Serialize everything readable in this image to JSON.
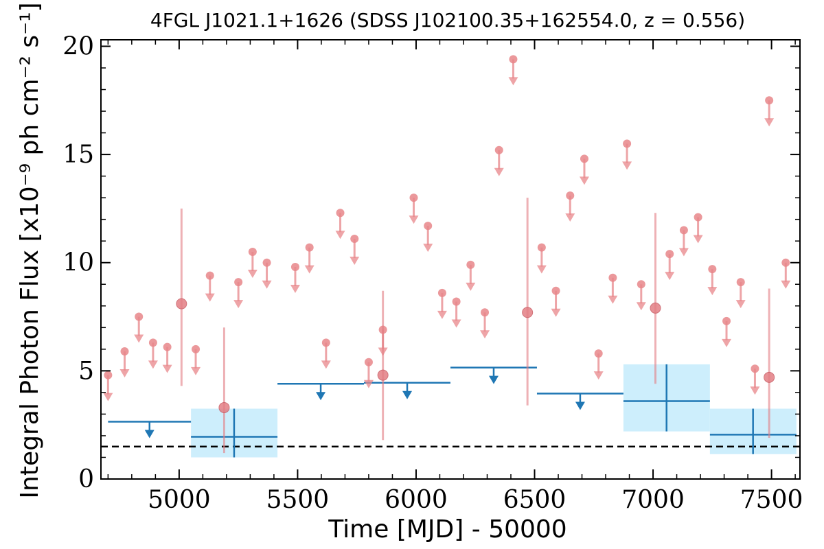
{
  "chart_data": {
    "type": "scatter",
    "title": "4FGL J1021.1+1626 (SDSS J102100.35+162554.0, z = 0.556)",
    "xlabel": "Time [MJD] - 50000",
    "ylabel": "Integral Photon Flux [x10⁻⁹ ph cm⁻² s⁻¹]",
    "xlim": [
      4670,
      7620
    ],
    "ylim": [
      0,
      20.3
    ],
    "xticks": [
      5000,
      5500,
      6000,
      6500,
      7000,
      7500
    ],
    "xtick_labels": [
      "5000",
      "5500",
      "6000",
      "6500",
      "7000",
      "7500"
    ],
    "yticks": [
      0,
      5,
      10,
      15,
      20
    ],
    "ytick_labels": [
      "0",
      "5",
      "10",
      "15",
      "20"
    ],
    "grid": false,
    "baseline_flux": 1.5,
    "series": [
      {
        "kind": "short-bin-upper-limits",
        "color": "#e8868a",
        "x": [
          4700,
          4770,
          4830,
          4890,
          4950,
          5070,
          5130,
          5250,
          5310,
          5370,
          5490,
          5550,
          5620,
          5680,
          5740,
          5800,
          5860,
          5990,
          6050,
          6110,
          6170,
          6230,
          6290,
          6350,
          6410,
          6530,
          6590,
          6650,
          6710,
          6770,
          6830,
          6890,
          6950,
          7070,
          7130,
          7190,
          7250,
          7310,
          7370,
          7430,
          7490,
          7560
        ],
        "values": [
          4.8,
          5.9,
          7.5,
          6.3,
          6.1,
          6.0,
          9.4,
          9.1,
          10.5,
          10.0,
          9.8,
          10.7,
          6.3,
          12.3,
          11.1,
          5.4,
          6.9,
          13.0,
          11.7,
          8.6,
          8.2,
          9.9,
          7.7,
          15.2,
          19.4,
          10.7,
          8.7,
          13.1,
          14.8,
          5.8,
          9.3,
          15.5,
          9.0,
          10.4,
          11.5,
          12.1,
          9.7,
          7.3,
          9.1,
          5.1,
          17.5,
          10.0
        ]
      },
      {
        "kind": "short-bin-detections",
        "color": "#e37e84",
        "x": [
          5010,
          5190,
          5860,
          6470,
          7010,
          7490
        ],
        "values": [
          8.1,
          3.3,
          4.8,
          7.7,
          7.9,
          4.7
        ],
        "err_low": [
          4.3,
          1.2,
          1.8,
          3.4,
          4.4,
          1.9
        ],
        "err_high": [
          12.5,
          7.0,
          8.7,
          13.0,
          12.3,
          8.8
        ]
      },
      {
        "kind": "long-bin-upper-limits",
        "color": "#1f77b4",
        "x_start": [
          4700,
          5415,
          5780,
          6145,
          6510
        ],
        "x_end": [
          5050,
          5780,
          6145,
          6510,
          6875
        ],
        "values": [
          2.65,
          4.4,
          4.45,
          5.15,
          3.95
        ]
      },
      {
        "kind": "long-bin-detections",
        "color": "#1f77b4",
        "band_color": "#cdeefc",
        "x_start": [
          5050,
          6875,
          7240
        ],
        "x_end": [
          5415,
          7240,
          7605
        ],
        "x_center": [
          5232,
          7057,
          7422
        ],
        "values": [
          1.95,
          3.6,
          2.05
        ],
        "err_low": [
          1.0,
          2.2,
          1.15
        ],
        "err_high": [
          3.25,
          5.3,
          3.25
        ]
      }
    ]
  }
}
